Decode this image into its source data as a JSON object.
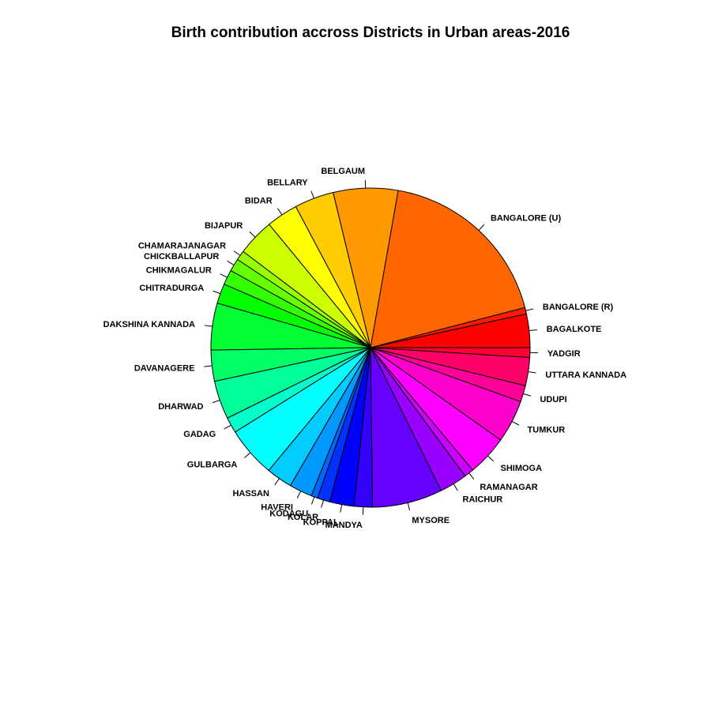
{
  "chart_data": {
    "type": "pie",
    "title": "Birth contribution accross Districts in Urban areas-2016",
    "start_angle_deg": 0,
    "direction": "counterclockwise",
    "slices": [
      {
        "label": "BAGALKOTE",
        "value": 2.85,
        "color": "#FF0000"
      },
      {
        "label": "BANGALORE (R)",
        "value": 0.55,
        "color": "#FF1A00"
      },
      {
        "label": "BANGALORE (U)",
        "value": 15.29,
        "color": "#FF6600"
      },
      {
        "label": "BELGAUM",
        "value": 5.5,
        "color": "#FF9900"
      },
      {
        "label": "BELLARY",
        "value": 3.36,
        "color": "#FFCC00"
      },
      {
        "label": "BIDAR",
        "value": 2.69,
        "color": "#FFFF00"
      },
      {
        "label": "BIJAPUR",
        "value": 3.16,
        "color": "#CCFF00"
      },
      {
        "label": "CHAMARAJANAGAR",
        "value": 0.82,
        "color": "#99FF00"
      },
      {
        "label": "CHICKBALLAPUR",
        "value": 1.09,
        "color": "#66FF00"
      },
      {
        "label": "CHIKMAGALUR",
        "value": 1.27,
        "color": "#33FF00"
      },
      {
        "label": "CHITRADURGA",
        "value": 1.69,
        "color": "#00FF00"
      },
      {
        "label": "DAKSHINA KANNADA",
        "value": 3.98,
        "color": "#00FF33"
      },
      {
        "label": "DAVANAGERE",
        "value": 2.65,
        "color": "#00FF66"
      },
      {
        "label": "DHARWAD",
        "value": 3.27,
        "color": "#00FF99"
      },
      {
        "label": "GADAG",
        "value": 1.34,
        "color": "#00FFCC"
      },
      {
        "label": "GULBARGA",
        "value": 4.3,
        "color": "#00FFFF"
      },
      {
        "label": "HASSAN",
        "value": 2.22,
        "color": "#00CCFF"
      },
      {
        "label": "HAVERI",
        "value": 1.95,
        "color": "#0099FF"
      },
      {
        "label": "KODAGU",
        "value": 0.55,
        "color": "#0066FF"
      },
      {
        "label": "KOLAR",
        "value": 1.08,
        "color": "#0033FF"
      },
      {
        "label": "KOPPAL",
        "value": 2.07,
        "color": "#0000FF"
      },
      {
        "label": "MANDYA",
        "value": 1.56,
        "color": "#3300FF"
      },
      {
        "label": "MYSORE",
        "value": 5.97,
        "color": "#6600FF"
      },
      {
        "label": "RAICHUR",
        "value": 2.36,
        "color": "#9900FF"
      },
      {
        "label": "RAMANAGAR",
        "value": 0.81,
        "color": "#CC00FF"
      },
      {
        "label": "SHIMOGA",
        "value": 3.45,
        "color": "#FF00FF"
      },
      {
        "label": "TUMKUR",
        "value": 3.64,
        "color": "#FF00CC"
      },
      {
        "label": "UDUPI",
        "value": 1.39,
        "color": "#FF0099"
      },
      {
        "label": "UTTARA KANNADA",
        "value": 2.4,
        "color": "#FF0066"
      },
      {
        "label": "YADGIR",
        "value": 0.83,
        "color": "#FF0033"
      }
    ]
  }
}
